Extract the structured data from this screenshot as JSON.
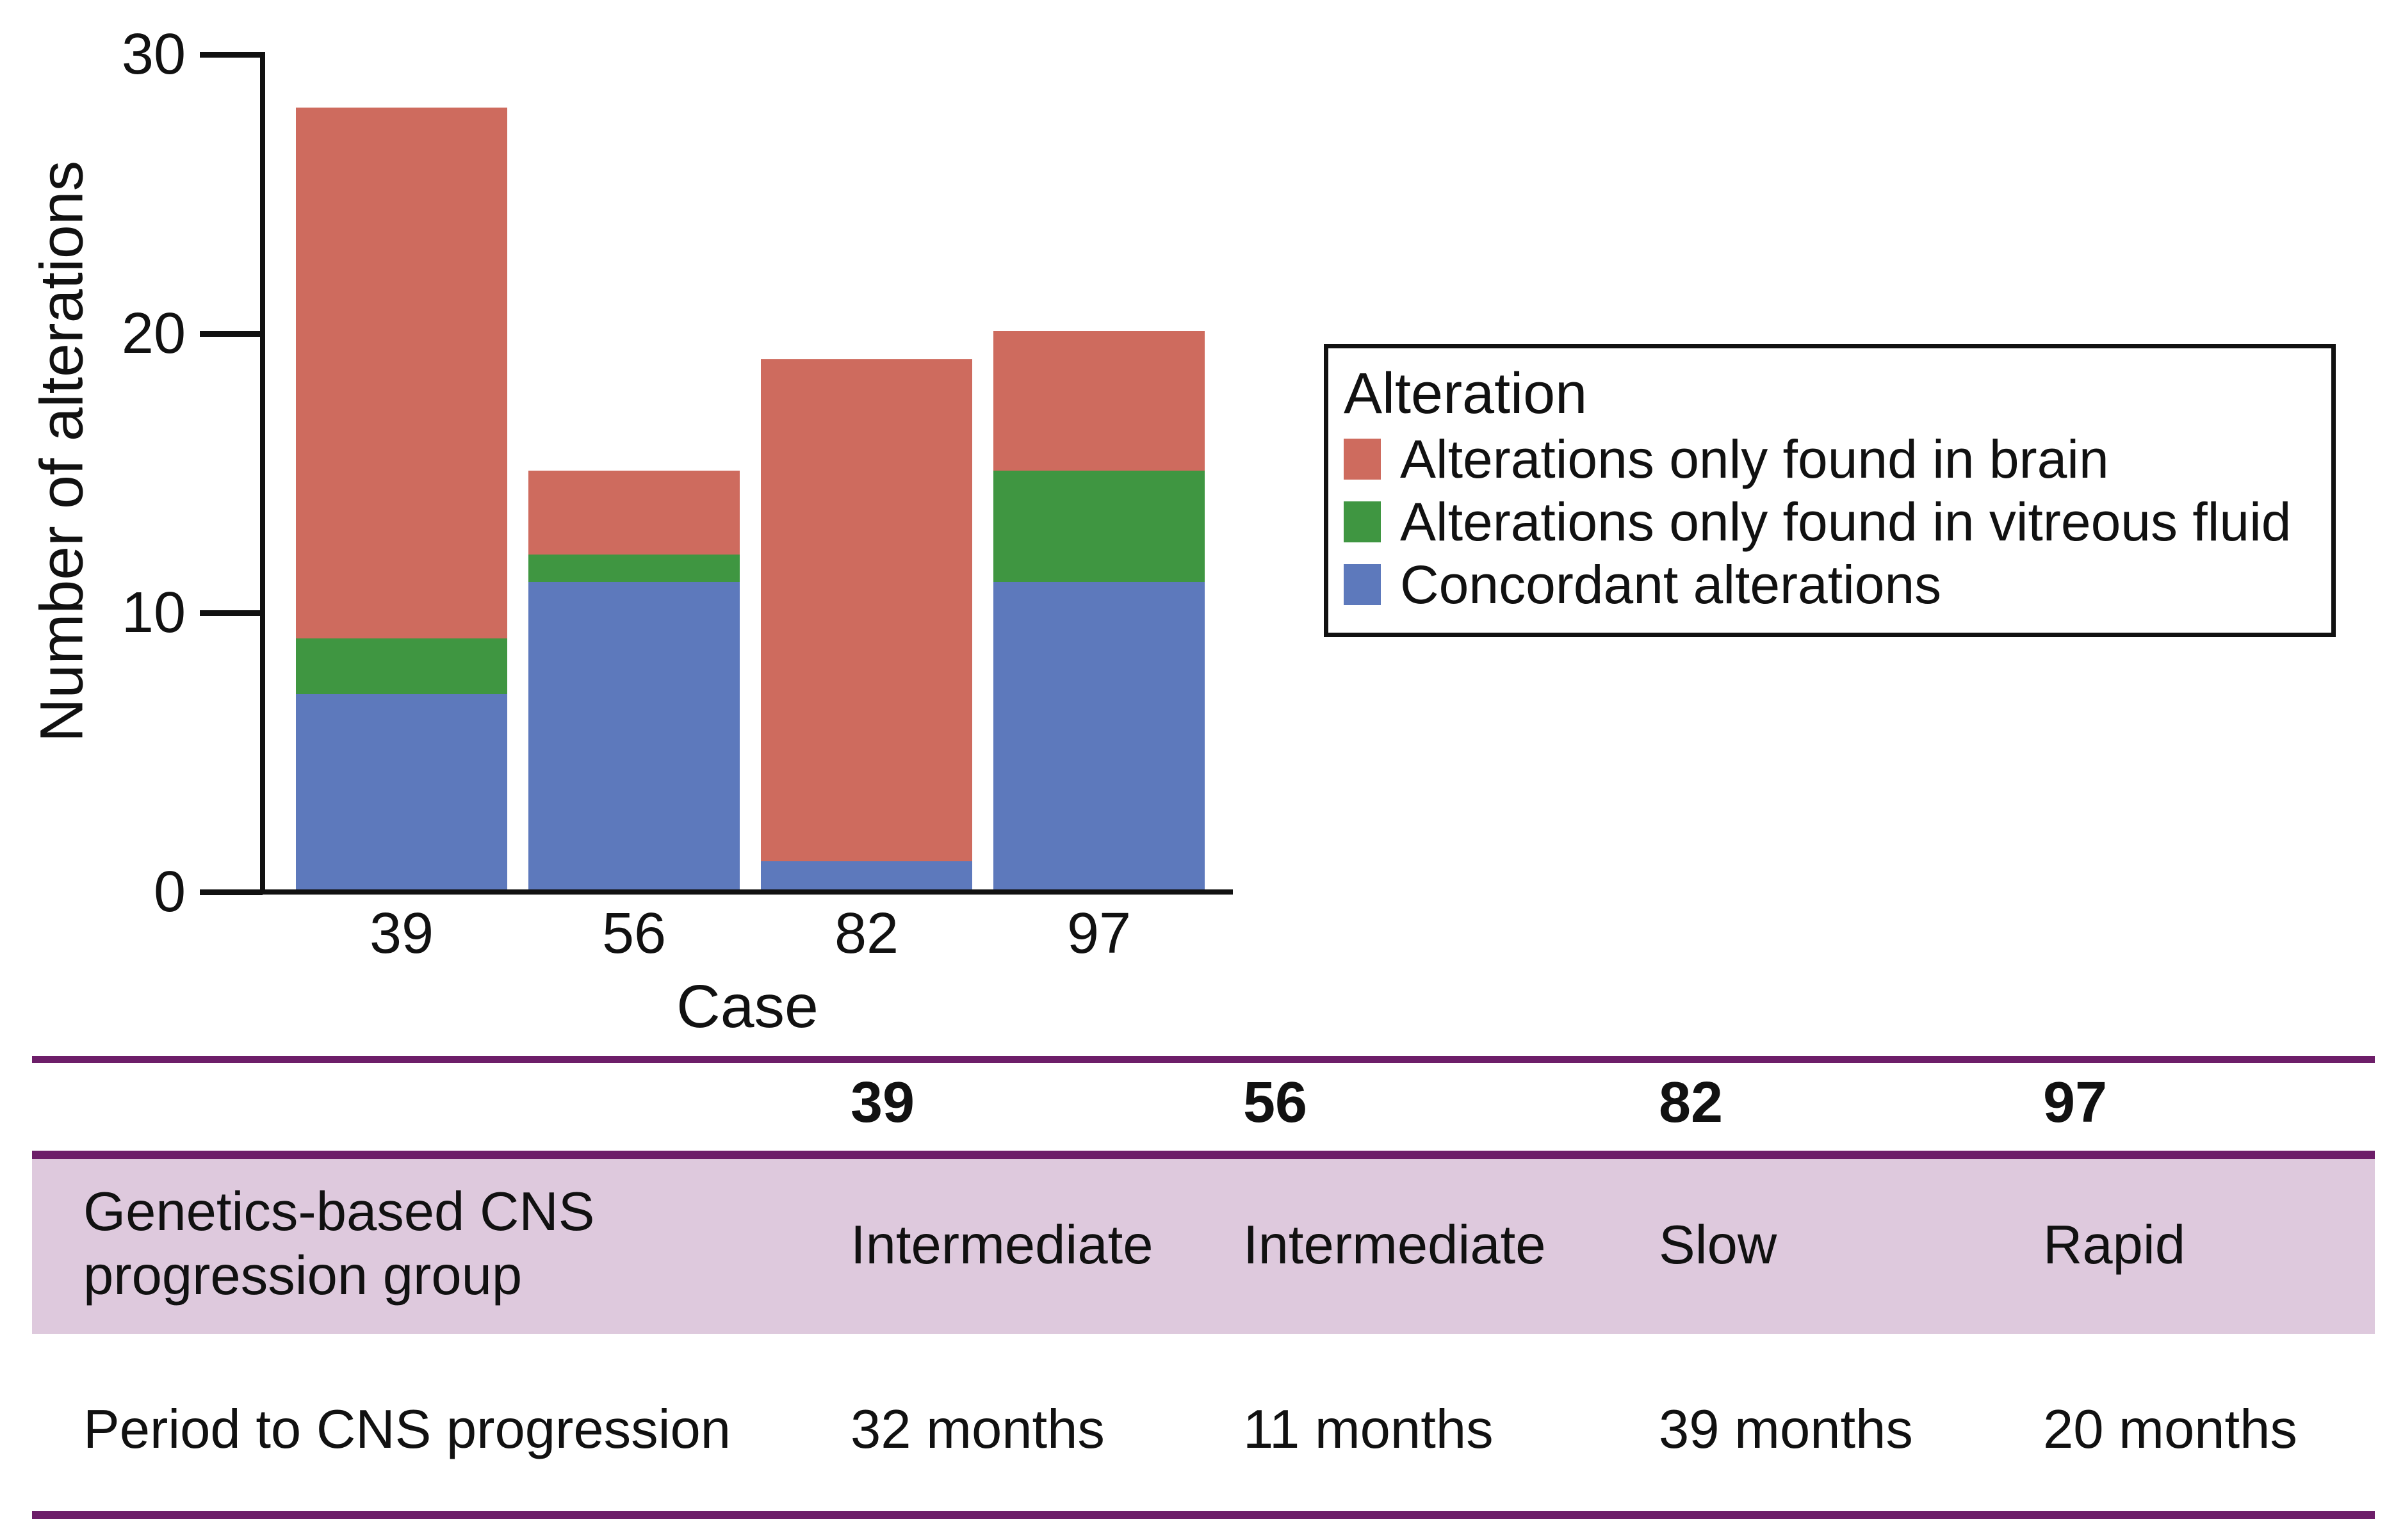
{
  "chart_data": {
    "type": "bar",
    "stacked": true,
    "categories": [
      "39",
      "56",
      "82",
      "97"
    ],
    "series": [
      {
        "name": "Concordant alterations",
        "color": "#5D79BC",
        "values": [
          7,
          11,
          1,
          11
        ]
      },
      {
        "name": "Alterations only found in vitreous fluid",
        "color": "#3F9641",
        "values": [
          2,
          1,
          0,
          4
        ]
      },
      {
        "name": "Alterations only found in brain",
        "color": "#CE6B5E",
        "values": [
          19,
          3,
          18,
          5
        ]
      }
    ],
    "totals": [
      28,
      15,
      19,
      20
    ],
    "xlabel": "Case",
    "ylabel": "Number of alterations",
    "ylim": [
      0,
      30
    ],
    "yticks": [
      "0",
      "10",
      "20",
      "30"
    ],
    "grid": false,
    "legend_title": "Alteration",
    "legend_position": "right",
    "legend_entries": [
      {
        "label": "Alterations only found in brain",
        "color": "#CE6B5E"
      },
      {
        "label": "Alterations only found in vitreous fluid",
        "color": "#3F9641"
      },
      {
        "label": "Concordant alterations",
        "color": "#5D79BC"
      }
    ]
  },
  "table": {
    "accent_color": "#6D1E69",
    "highlight_color": "#DEC9DD",
    "header": [
      "39",
      "56",
      "82",
      "97"
    ],
    "row1": {
      "label_line1": "Genetics-based CNS",
      "label_line2": "progression group",
      "values": [
        "Intermediate",
        "Intermediate",
        "Slow",
        "Rapid"
      ]
    },
    "row2": {
      "label": "Period to CNS progression",
      "values": [
        "32 months",
        "11 months",
        "39 months",
        "20 months"
      ]
    }
  }
}
